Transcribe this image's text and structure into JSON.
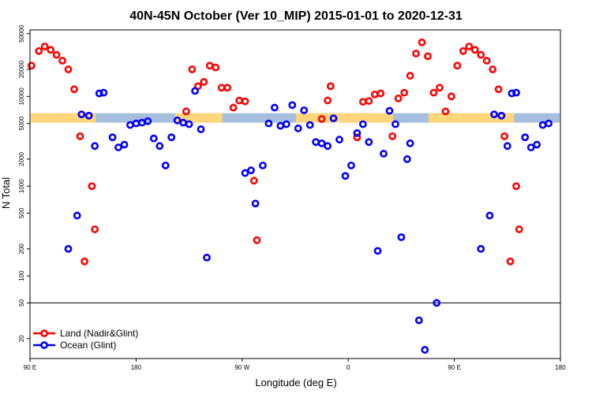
{
  "chart_data": {
    "type": "scatter",
    "title": "40N-45N October (Ver 10_MIP)   2015-01-01 to 2020-12-31",
    "xlabel": "Longitude (deg E)",
    "ylabel": "N Total",
    "x_tick_labels": [
      "90 E",
      "180",
      "90 W",
      "0",
      "90 E",
      "180"
    ],
    "y_scale": "log",
    "ylim": [
      12,
      55000
    ],
    "y_ticks": [
      20,
      50,
      100,
      200,
      500,
      1000,
      2000,
      5000,
      10000,
      20000,
      50000
    ],
    "reference_line_y": 50,
    "grid": false,
    "legend_position": "bottom-left",
    "band": {
      "y_range": [
        5100,
        6500
      ],
      "colors": [
        "#ffd77a",
        "#a7bfdf"
      ]
    },
    "series": [
      {
        "name": "Land (Nadir&Glint)",
        "color": "#ff0000",
        "points": [
          [
            0.5,
            22000
          ],
          [
            3,
            32000
          ],
          [
            5,
            36000
          ],
          [
            7,
            33000
          ],
          [
            9,
            29000
          ],
          [
            11,
            25000
          ],
          [
            13,
            20000
          ],
          [
            15,
            12000
          ],
          [
            17,
            3600
          ],
          [
            18.5,
            145
          ],
          [
            21,
            1000
          ],
          [
            22,
            330
          ],
          [
            53,
            6800
          ],
          [
            55,
            20000
          ],
          [
            57,
            13000
          ],
          [
            59,
            14500
          ],
          [
            61,
            22000
          ],
          [
            63,
            21000
          ],
          [
            65,
            12500
          ],
          [
            67,
            12500
          ],
          [
            69,
            7500
          ],
          [
            71,
            9000
          ],
          [
            73,
            8800
          ],
          [
            76,
            1150
          ],
          [
            77,
            250
          ],
          [
            99,
            5600
          ],
          [
            101,
            9000
          ],
          [
            102,
            13000
          ],
          [
            111,
            3500
          ],
          [
            113,
            8700
          ],
          [
            115,
            8900
          ],
          [
            117,
            10500
          ],
          [
            119,
            10800
          ],
          [
            123,
            3600
          ],
          [
            125,
            9500
          ],
          [
            127,
            11000
          ],
          [
            129,
            17000
          ],
          [
            131,
            30000
          ],
          [
            133,
            40000
          ],
          [
            135,
            28000
          ],
          [
            137,
            11000
          ],
          [
            139,
            12500
          ],
          [
            141,
            6800
          ],
          [
            143,
            10000
          ],
          [
            145,
            22000
          ],
          [
            147,
            32000
          ],
          [
            149,
            36000
          ],
          [
            151,
            33000
          ],
          [
            153,
            29000
          ],
          [
            155,
            25000
          ],
          [
            157,
            20000
          ],
          [
            159,
            12000
          ],
          [
            161,
            3600
          ],
          [
            163,
            145
          ],
          [
            165,
            1000
          ],
          [
            166,
            330
          ]
        ]
      },
      {
        "name": "Ocean (Glint)",
        "color": "#0000ff",
        "points": [
          [
            13,
            200
          ],
          [
            16,
            470
          ],
          [
            17.5,
            6300
          ],
          [
            20,
            6100
          ],
          [
            22,
            2800
          ],
          [
            23.5,
            10800
          ],
          [
            25,
            11000
          ],
          [
            28,
            3500
          ],
          [
            30,
            2700
          ],
          [
            32,
            2900
          ],
          [
            34,
            4800
          ],
          [
            36,
            5000
          ],
          [
            38,
            5100
          ],
          [
            40,
            5300
          ],
          [
            42,
            3400
          ],
          [
            44,
            2800
          ],
          [
            46,
            1700
          ],
          [
            48,
            3500
          ],
          [
            50,
            5400
          ],
          [
            52,
            5100
          ],
          [
            54,
            4900
          ],
          [
            56,
            11500
          ],
          [
            58,
            4300
          ],
          [
            60,
            160
          ],
          [
            73,
            1400
          ],
          [
            75,
            1500
          ],
          [
            76.5,
            640
          ],
          [
            79,
            1700
          ],
          [
            81,
            5000
          ],
          [
            83,
            7500
          ],
          [
            85,
            4700
          ],
          [
            87,
            4900
          ],
          [
            89,
            8000
          ],
          [
            91,
            4400
          ],
          [
            93,
            7000
          ],
          [
            95,
            4800
          ],
          [
            97,
            3100
          ],
          [
            99,
            3000
          ],
          [
            101,
            2800
          ],
          [
            103,
            5700
          ],
          [
            105,
            3300
          ],
          [
            107,
            1300
          ],
          [
            109,
            1700
          ],
          [
            111,
            3900
          ],
          [
            113,
            4900
          ],
          [
            115,
            3100
          ],
          [
            118,
            190
          ],
          [
            120,
            2300
          ],
          [
            122,
            6900
          ],
          [
            124,
            4900
          ],
          [
            126,
            270
          ],
          [
            128,
            2000
          ],
          [
            129,
            3000
          ],
          [
            132,
            32
          ],
          [
            134,
            15
          ],
          [
            138,
            50
          ],
          [
            153,
            200
          ],
          [
            156,
            470
          ],
          [
            157.5,
            6300
          ],
          [
            160,
            6100
          ],
          [
            162,
            2800
          ],
          [
            163.5,
            10800
          ],
          [
            165,
            11000
          ],
          [
            168,
            3500
          ],
          [
            170,
            2700
          ],
          [
            172,
            2900
          ],
          [
            174,
            4800
          ],
          [
            176,
            5000
          ]
        ]
      }
    ]
  }
}
